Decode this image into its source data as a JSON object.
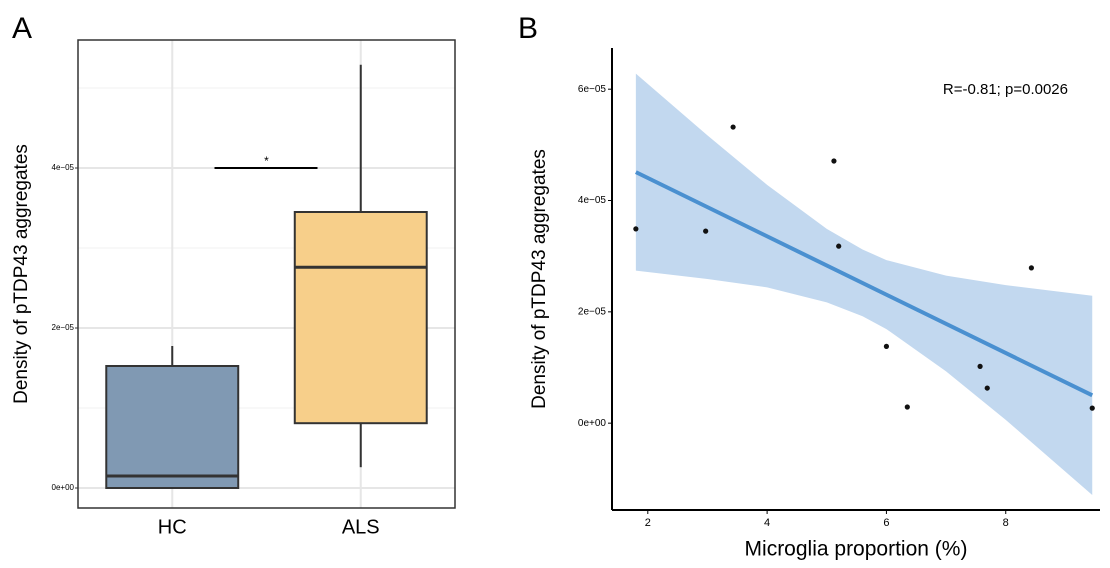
{
  "chart_data": [
    {
      "type": "box",
      "panel": "A",
      "ylabel": "Density of pTDP43 aggregates",
      "categories": [
        "HC",
        "ALS"
      ],
      "boxes": [
        {
          "color": "#8099b3",
          "min": 0,
          "q1": 0,
          "median": 1.5e-06,
          "q3": 1.525e-05,
          "max": 1.775e-05
        },
        {
          "color": "#f7cf8a",
          "min": 2.6e-06,
          "q1": 8.1e-06,
          "median": 2.76e-05,
          "q3": 3.45e-05,
          "max": 5.29e-05
        }
      ],
      "ylim": [
        -2.5e-06,
        5.6e-05
      ],
      "yticks": [
        {
          "value": 0,
          "label": "0e+00"
        },
        {
          "value": 2e-05,
          "label": "2e−05"
        },
        {
          "value": 4e-05,
          "label": "4e−05"
        }
      ],
      "minor_yticks": [
        1e-05,
        3e-05,
        5e-05
      ],
      "grid": true,
      "significance": {
        "label": "*",
        "y": 4e-05
      }
    },
    {
      "type": "scatter",
      "panel": "B",
      "xlabel": "Microglia proportion (%)",
      "ylabel": "Density of pTDP43 aggregates",
      "annotation": "R=-0.81; p=0.0026",
      "x": [
        1.8,
        2.97,
        3.43,
        5.12,
        5.2,
        6.0,
        6.35,
        7.57,
        7.69,
        8.43,
        9.45
      ],
      "y": [
        3.49e-05,
        3.45e-05,
        5.32e-05,
        4.71e-05,
        3.18e-05,
        1.38e-05,
        2.9e-06,
        1.02e-05,
        6.3e-06,
        2.79e-05,
        2.7e-06
      ],
      "color": "#111111",
      "fit": {
        "color": "#4a90d0",
        "x": [
          1.8,
          9.45
        ],
        "y": [
          4.51e-05,
          5e-06
        ]
      },
      "band": {
        "color": "#c2d8ef",
        "x": [
          1.8,
          3,
          4,
          5,
          5.6,
          6,
          7,
          8,
          9.45
        ],
        "upper": [
          6.28e-05,
          5.17e-05,
          4.28e-05,
          3.49e-05,
          3.12e-05,
          2.93e-05,
          2.65e-05,
          2.48e-05,
          2.29e-05
        ],
        "lower": [
          2.74e-05,
          2.59e-05,
          2.44e-05,
          2.17e-05,
          1.92e-05,
          1.69e-05,
          9.3e-06,
          6e-07,
          -1.29e-05
        ]
      },
      "xlim": [
        1.4,
        9.58
      ],
      "xticks": [
        2,
        4,
        6,
        8
      ],
      "ylim": [
        -1.56e-05,
        6.74e-05
      ],
      "yticks": [
        {
          "value": 0,
          "label": "0e+00"
        },
        {
          "value": 2e-05,
          "label": "2e−05"
        },
        {
          "value": 4e-05,
          "label": "4e−05"
        },
        {
          "value": 6e-05,
          "label": "6e−05"
        }
      ],
      "grid": false
    }
  ]
}
